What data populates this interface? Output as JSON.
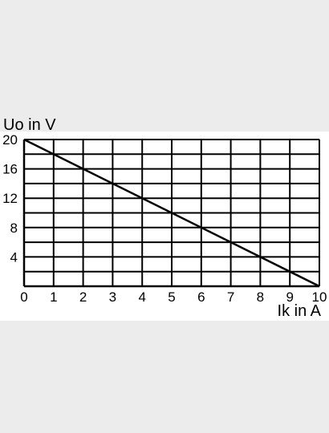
{
  "chart_data": {
    "type": "line",
    "xlabel": "Ik in A",
    "ylabel": "Uo in V",
    "xlim": [
      0,
      10
    ],
    "ylim": [
      0,
      20
    ],
    "x_ticks": [
      0,
      1,
      2,
      3,
      4,
      5,
      6,
      7,
      8,
      9,
      10
    ],
    "y_ticks": [
      4,
      8,
      12,
      16,
      20
    ],
    "grid": true,
    "x_grid_step": 1,
    "y_grid_step": 2,
    "series": [
      {
        "x": [
          0,
          10
        ],
        "values": [
          20,
          0
        ]
      }
    ],
    "colors": {
      "line": "#000000",
      "grid": "#000000",
      "panel": "#ffffff",
      "page": "#ececec"
    }
  }
}
